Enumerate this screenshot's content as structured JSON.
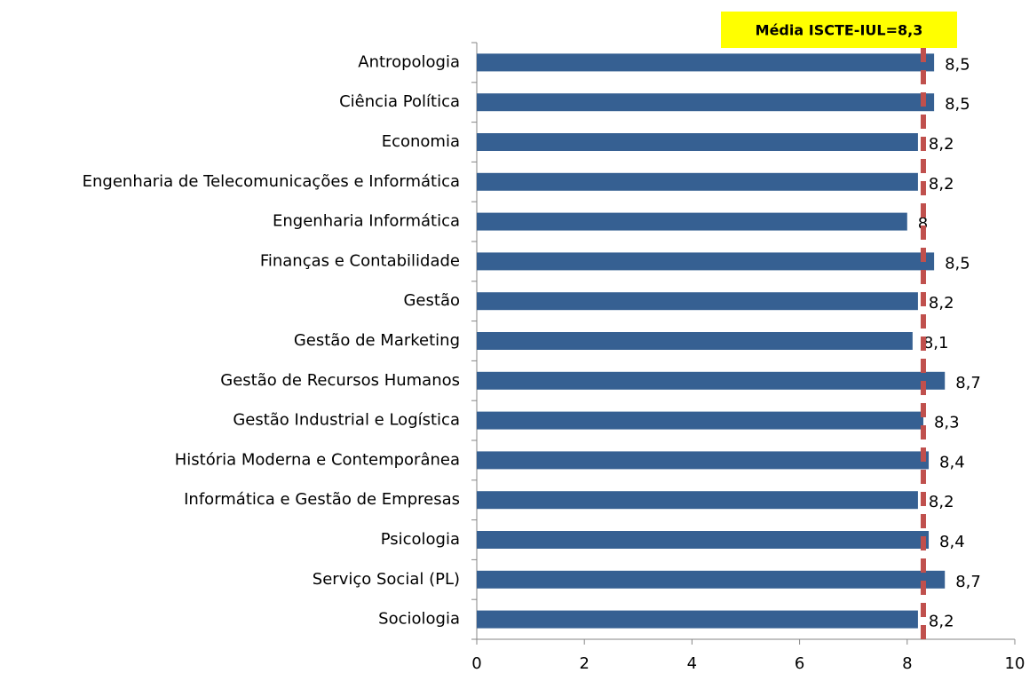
{
  "chart_data": {
    "type": "bar",
    "orientation": "horizontal",
    "categories": [
      "Antropologia",
      "Ciência Política",
      "Economia",
      "Engenharia de Telecomunicações e Informática",
      "Engenharia Informática",
      "Finanças e Contabilidade",
      "Gestão",
      "Gestão de Marketing",
      "Gestão de Recursos Humanos",
      "Gestão Industrial e Logística",
      "História Moderna e Contemporânea",
      "Informática e Gestão de Empresas",
      "Psicologia",
      "Serviço Social (PL)",
      "Sociologia"
    ],
    "values": [
      8.5,
      8.5,
      8.2,
      8.2,
      8,
      8.5,
      8.2,
      8.1,
      8.7,
      8.3,
      8.4,
      8.2,
      8.4,
      8.7,
      8.2
    ],
    "value_labels": [
      "8,5",
      "8,5",
      "8,2",
      "8,2",
      "8",
      "8,5",
      "8,2",
      "8,1",
      "8,7",
      "8,3",
      "8,4",
      "8,2",
      "8,4",
      "8,7",
      "8,2"
    ],
    "color": "#366092",
    "xlim": [
      0,
      10
    ],
    "xticks": [
      0,
      2,
      4,
      6,
      8,
      10
    ],
    "reference_line": {
      "value": 8.3,
      "label": "Média ISCTE-IUL=8,3",
      "color": "#c0504d"
    }
  }
}
